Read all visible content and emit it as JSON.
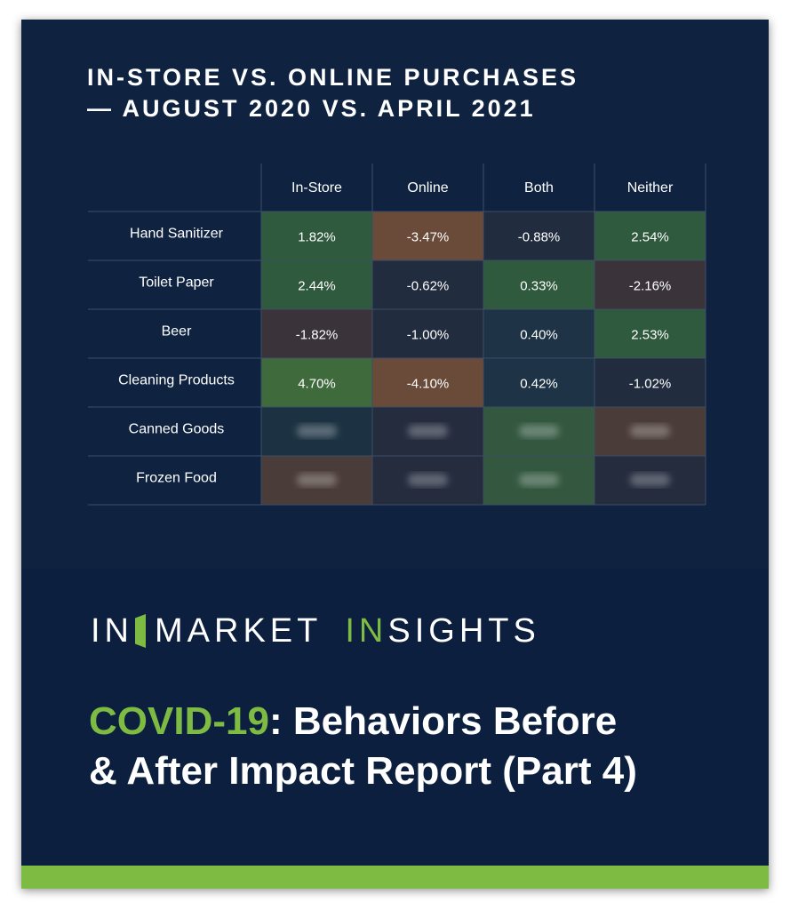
{
  "logo": {
    "part1": "IN",
    "part2": "MARKET",
    "part3": "IN",
    "part4": "SIGHTS"
  },
  "report": {
    "highlight": "COVID-19",
    "line1_rest": ": Behaviors Before",
    "line2": "& After Impact Report (Part 4)"
  },
  "colors": {
    "background": "#0f2240",
    "accent_green": "#7dbb42",
    "cell_positive_strong": "#3f6a3c",
    "cell_positive": "#2f5a3e",
    "cell_neutral_dark": "#222c3f",
    "cell_negative": "#3a343a",
    "cell_negative_strong": "#6a4a38"
  },
  "chart_data": {
    "type": "table",
    "title_lines": [
      "IN-STORE VS. ONLINE PURCHASES",
      "— AUGUST 2020 VS. APRIL 2021"
    ],
    "columns": [
      "In-Store",
      "Online",
      "Both",
      "Neither"
    ],
    "rows": [
      {
        "label": "Hand Sanitizer",
        "values": [
          "1.82%",
          "-3.47%",
          "-0.88%",
          "2.54%"
        ],
        "numeric": [
          1.82,
          -3.47,
          -0.88,
          2.54
        ],
        "blurred": false
      },
      {
        "label": "Toilet Paper",
        "values": [
          "2.44%",
          "-0.62%",
          "0.33%",
          "-2.16%"
        ],
        "numeric": [
          2.44,
          -0.62,
          0.33,
          -2.16
        ],
        "blurred": false
      },
      {
        "label": "Beer",
        "values": [
          "-1.82%",
          "-1.00%",
          "0.40%",
          "2.53%"
        ],
        "numeric": [
          -1.82,
          -1.0,
          0.4,
          2.53
        ],
        "blurred": false
      },
      {
        "label": "Cleaning Products",
        "values": [
          "4.70%",
          "-4.10%",
          "0.42%",
          "-1.02%"
        ],
        "numeric": [
          4.7,
          -4.1,
          0.42,
          -1.02
        ],
        "blurred": false
      },
      {
        "label": "Canned Goods",
        "values": [
          "",
          "",
          "",
          ""
        ],
        "numeric": [
          null,
          null,
          null,
          null
        ],
        "blurred": true,
        "tones": [
          "dark-teal",
          "dark",
          "green",
          "brown"
        ]
      },
      {
        "label": "Frozen Food",
        "values": [
          "",
          "",
          "",
          ""
        ],
        "numeric": [
          null,
          null,
          null,
          null
        ],
        "blurred": true,
        "tones": [
          "brown",
          "dark",
          "green",
          "dark"
        ]
      }
    ]
  }
}
